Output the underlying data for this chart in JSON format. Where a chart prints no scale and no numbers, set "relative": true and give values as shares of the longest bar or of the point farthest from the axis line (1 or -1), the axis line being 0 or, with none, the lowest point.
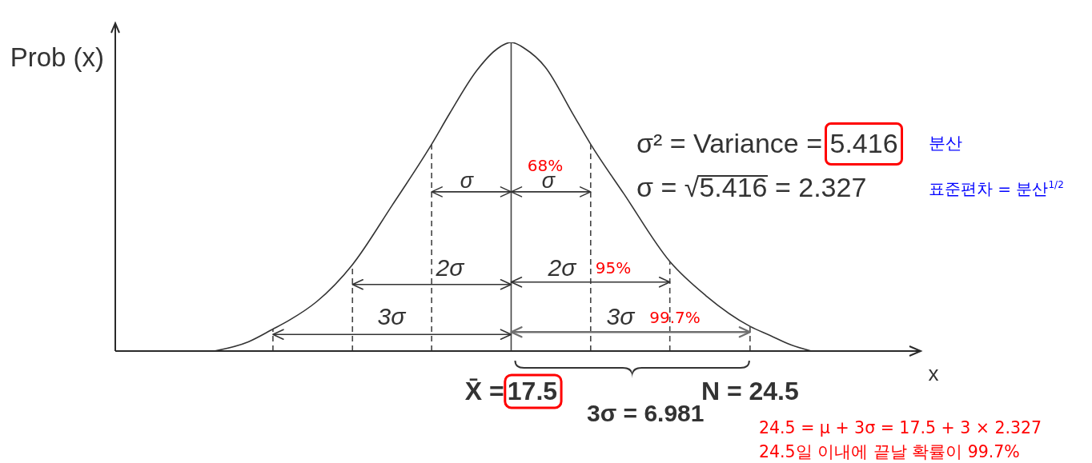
{
  "chart_data": {
    "type": "line",
    "ylabel": "Prob (x)",
    "xlabel": "x",
    "relative": true,
    "xlim": [
      5.9,
      29.5
    ],
    "xticks": [
      {
        "value": 17.5,
        "label": "X̄ =17.5"
      },
      {
        "value": 24.5,
        "label": "N = 24.5"
      }
    ],
    "series": [
      {
        "x": [
          8.8,
          9.8,
          10.5,
          11.0,
          11.8,
          12.85,
          14.0,
          15.17,
          15.7,
          16.5,
          17.1,
          17.5,
          17.9,
          18.5,
          19.3,
          19.83,
          20.8,
          22.15,
          23.2,
          24.5,
          25.1,
          25.7,
          26.3
        ],
        "values": [
          0,
          0.03,
          0.07,
          0.1,
          0.16,
          0.28,
          0.47,
          0.67,
          0.77,
          0.91,
          0.98,
          1,
          0.98,
          0.92,
          0.77,
          0.67,
          0.51,
          0.29,
          0.18,
          0.08,
          0.05,
          0.02,
          0
        ],
        "color": "#333333"
      },
      {
        "x": [
          10.52,
          10.52
        ],
        "values": [
          0,
          0.07
        ],
        "color": "#444444",
        "line_style": "dashed"
      },
      {
        "x": [
          12.85,
          12.85
        ],
        "values": [
          0,
          0.28
        ],
        "color": "#444444",
        "line_style": "dashed"
      },
      {
        "x": [
          15.17,
          15.17
        ],
        "values": [
          0,
          0.67
        ],
        "color": "#444444",
        "line_style": "dashed"
      },
      {
        "x": [
          19.83,
          19.83
        ],
        "values": [
          0,
          0.67
        ],
        "color": "#444444",
        "line_style": "dashed"
      },
      {
        "x": [
          22.15,
          22.15
        ],
        "values": [
          0,
          0.29
        ],
        "color": "#444444",
        "line_style": "dashed"
      },
      {
        "x": [
          24.5,
          24.5
        ],
        "values": [
          0,
          0.08
        ],
        "color": "#444444",
        "line_style": "dashed"
      }
    ],
    "ref_lines": [
      {
        "axis": "x",
        "value": 17.5,
        "color": "#444444"
      }
    ],
    "annotations": [
      "σ",
      "σ",
      "68%",
      "2σ",
      "2σ",
      "95%",
      "3σ",
      "3σ",
      "99.7%",
      "σ² = Variance = 5.416",
      "분산",
      "σ = √5.416 = 2.327",
      "표준편차 = 분산$^{1/2}$",
      "3σ = 6.981",
      "24.5 = μ + 3σ = 17.5 + 3 × 2.327",
      "24.5일 이내에 끝날 확률이 99.7%"
    ]
  }
}
